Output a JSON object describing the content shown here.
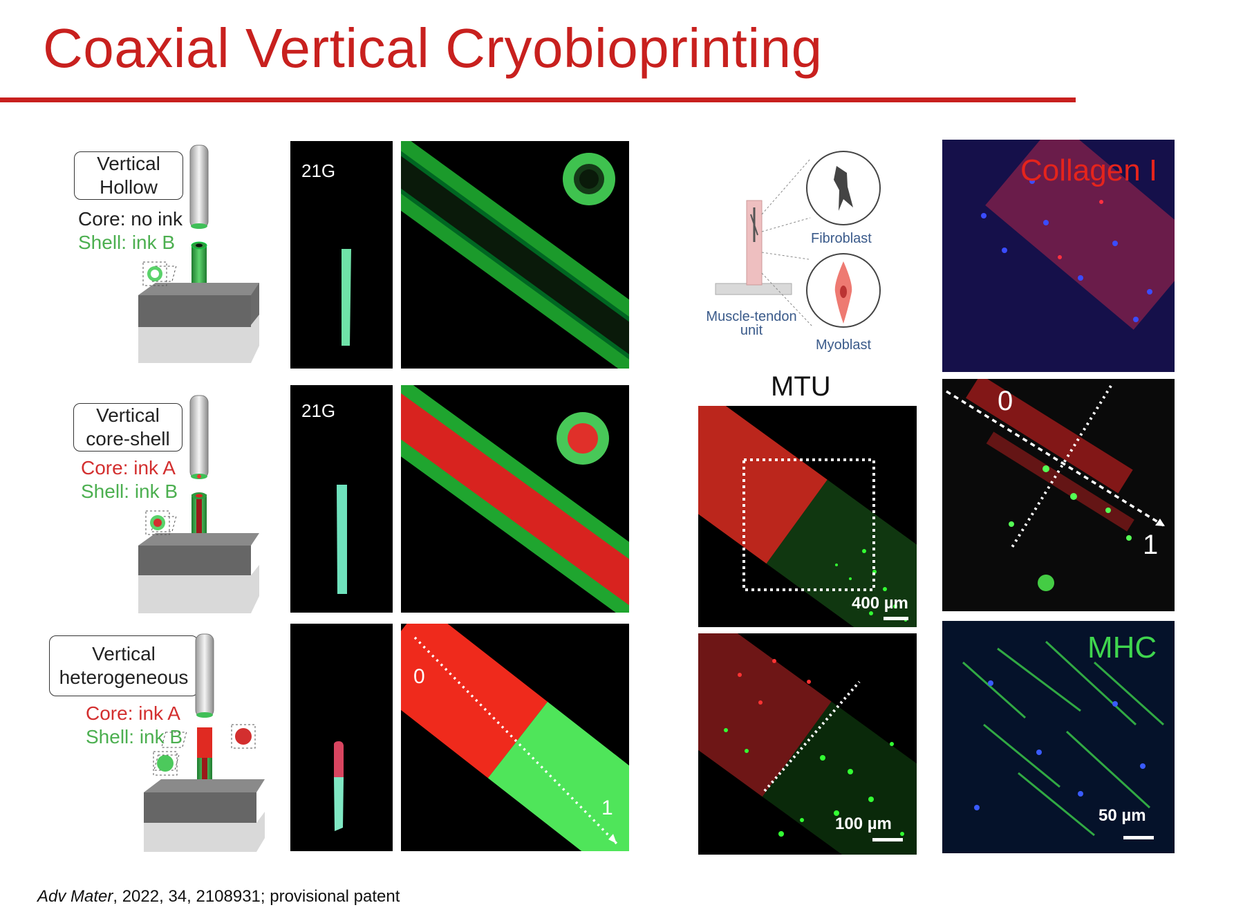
{
  "title": "Coaxial Vertical Cryobioprinting",
  "rows": [
    {
      "tag_line1": "Vertical",
      "tag_line2": "Hollow",
      "core": "Core: no ink",
      "shell": "Shell: ink B",
      "gauge": "21G"
    },
    {
      "tag_line1": "Vertical",
      "tag_line2": "core-shell",
      "core": "Core: ink A",
      "shell": "Shell: ink B",
      "gauge": "21G"
    },
    {
      "tag_line1": "Vertical",
      "tag_line2": "heterogeneous",
      "core": "Core: ink A",
      "shell": "Shell: ink B",
      "marker_start": "0",
      "marker_end": "1"
    }
  ],
  "diagram": {
    "fibroblast": "Fibroblast",
    "myoblast": "Myoblast",
    "mtu_line1": "Muscle-tendon",
    "mtu_line2": "unit"
  },
  "mtu": {
    "heading": "MTU",
    "scale_top": "400 µm",
    "scale_bottom": "100 µm"
  },
  "stains": {
    "collagen": "Collagen I",
    "mhc": "MHC",
    "marker_start": "0",
    "marker_end": "1",
    "scale": "50 µm"
  },
  "reference": {
    "journal": "Adv Mater",
    "rest": ", 2022, 34, 2108931; provisional patent"
  },
  "colors": {
    "accent": "#c8201e",
    "green": "#4caf50",
    "red": "#d32f2f"
  }
}
